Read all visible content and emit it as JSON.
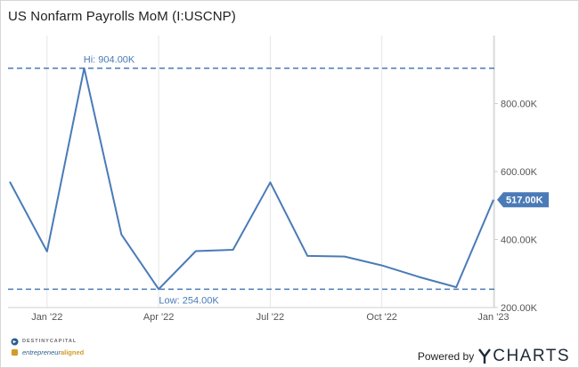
{
  "chart_data": {
    "type": "line",
    "title": "US Nonfarm Payrolls MoM (I:USCNP)",
    "series": [
      {
        "x": [
          "2021-12",
          "2022-01",
          "2022-02",
          "2022-03",
          "2022-04",
          "2022-05",
          "2022-06",
          "2022-07",
          "2022-08",
          "2022-09",
          "2022-10",
          "2022-11",
          "2022-12",
          "2023-01"
        ],
        "values": [
          570,
          365,
          904,
          415,
          254,
          366,
          370,
          568,
          352,
          350,
          324,
          290,
          260,
          517
        ]
      }
    ],
    "x_ticks": [
      "Jan '22",
      "Apr '22",
      "Jul '22",
      "Oct '22",
      "Jan '23"
    ],
    "y_ticks": [
      "200.00K",
      "400.00K",
      "600.00K",
      "800.00K"
    ],
    "y_tick_values": [
      200,
      400,
      600,
      800
    ],
    "ylim": [
      200,
      1000
    ],
    "unit": "K",
    "high": {
      "label": "Hi: 904.00K",
      "value": 904
    },
    "low": {
      "label": "Low: 254.00K",
      "value": 254
    },
    "last": {
      "label": "517.00K",
      "value": 517
    },
    "grid": "vertical",
    "line_color": "#4a7bb7"
  },
  "branding": {
    "logo_top": "DESTINYCAPITAL",
    "logo_bottom_a": "entrepreneur",
    "logo_bottom_b": "aligned",
    "powered_by": "Powered by",
    "ycharts": "CHARTS"
  }
}
